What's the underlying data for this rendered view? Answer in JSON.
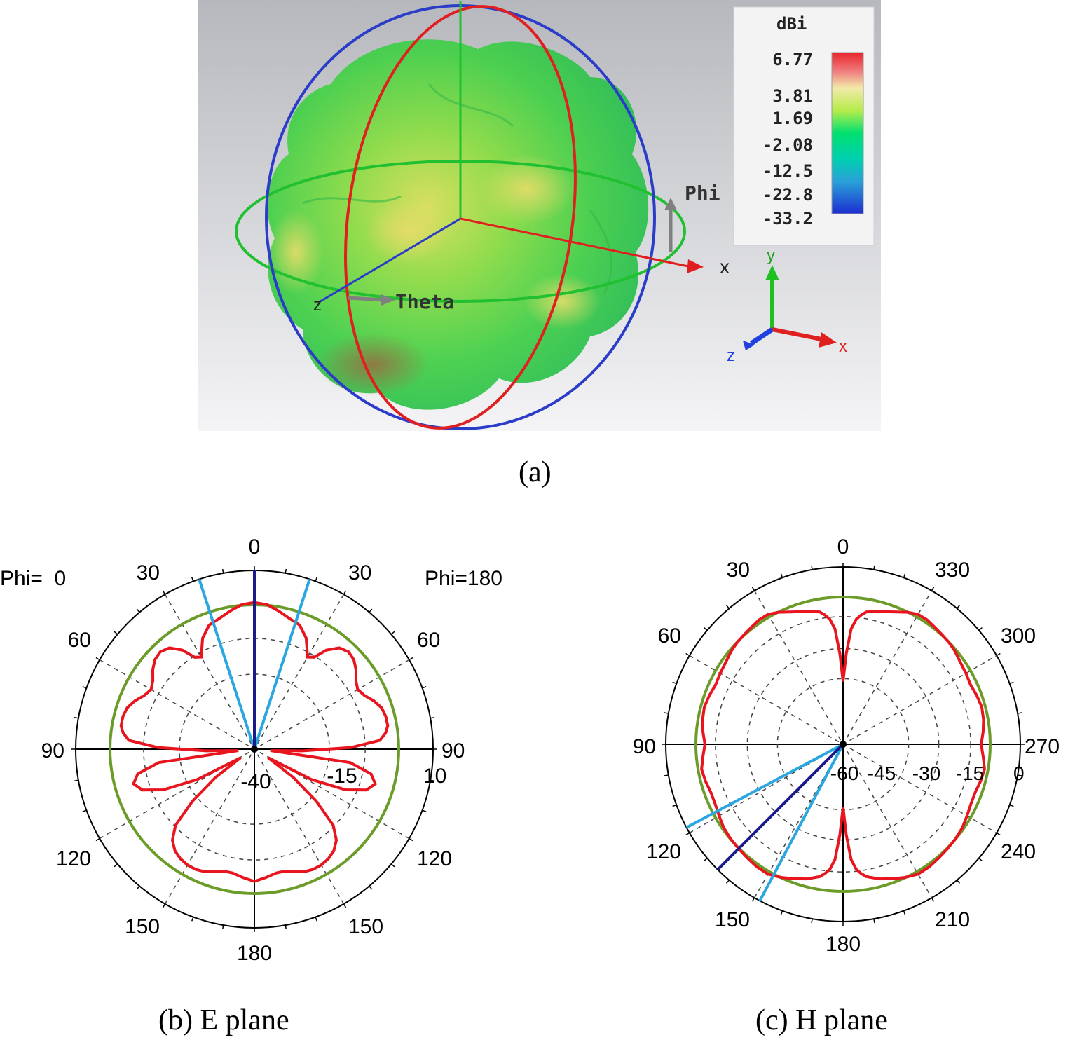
{
  "figure": {
    "caption_a": "(a)",
    "caption_b": "(b) E plane",
    "caption_c": "(c) H plane"
  },
  "chart_data": [
    {
      "type": "3d-surface",
      "id": "a",
      "legend": {
        "unit": "dBi",
        "values": [
          "6.77",
          "3.81",
          "1.69",
          "-2.08",
          "-12.5",
          "-22.8",
          "-33.2"
        ],
        "colors": [
          "#e8262c",
          "#f2e38a",
          "#b5ec4a",
          "#00e070",
          "#00c8a8",
          "#2aa0d8",
          "#1c2ed0"
        ]
      },
      "labels": {
        "phi": "Phi",
        "theta": "Theta",
        "x": "x",
        "y": "y",
        "z": "z"
      },
      "colors": {
        "background_top": "#b8babf",
        "background_bottom": "#f3f3f5",
        "surface_main": "#52d645",
        "surface_warm": "#d8d860",
        "ring_blue": "#2a3cc8",
        "ring_red": "#e02020",
        "ring_green": "#20c030",
        "axis_x": "#e02020",
        "axis_y": "#20c020",
        "axis_z": "#2040e0"
      }
    },
    {
      "type": "polar",
      "id": "b",
      "angle_labels": {
        "top": "0",
        "bottom": "180",
        "left": "90",
        "right": "90",
        "left_30": "30",
        "right_30": "30",
        "left_60": "60",
        "right_60": "60",
        "left_120": "120",
        "right_120": "120",
        "left_150": "150",
        "right_150": "150"
      },
      "side_left": "Phi=  0",
      "side_right": "Phi=180",
      "radial_labels": [
        "-40",
        "-15",
        "10"
      ],
      "rlim": [
        -40,
        10
      ],
      "series": [
        {
          "color": "#e8141e",
          "angles_deg": [
            0,
            5,
            10,
            15,
            20,
            25,
            30,
            33,
            36,
            40,
            44,
            48,
            52,
            56,
            60,
            64,
            68,
            72,
            76,
            80,
            83,
            86,
            89,
            92,
            95,
            98,
            102,
            106,
            110,
            114,
            118,
            122,
            126,
            130,
            134,
            138,
            142,
            146,
            150,
            154,
            158,
            162,
            166,
            170,
            175,
            180
          ],
          "values_db": [
            5.5,
            5,
            3.5,
            2,
            1,
            -2,
            -7,
            -6,
            -2,
            1,
            2,
            1.5,
            0,
            -2,
            -3,
            -2,
            0,
            1.5,
            2,
            2,
            1,
            -1,
            -10,
            -25,
            -35,
            -10,
            -3,
            -1,
            -3,
            -9,
            -20,
            -35,
            -25,
            -15,
            -6,
            -2,
            0,
            1,
            1.5,
            1.5,
            1,
            0,
            -1,
            -1,
            0,
            1
          ]
        },
        {
          "color": "#6b9c2a",
          "values_db": [
            3
          ],
          "note": ""
        }
      ],
      "beam_lines": {
        "main_deg": 0,
        "side_deg": [
          -18,
          18
        ],
        "main_color": "#1a1a8c",
        "side_color": "#2aa6e0"
      }
    },
    {
      "type": "polar",
      "id": "c",
      "angle_labels": {
        "top": "0",
        "bottom": "180",
        "left": "90",
        "right": "270",
        "l30": "30",
        "l60": "60",
        "l120": "120",
        "l150": "150",
        "r330": "330",
        "r300": "300",
        "r240": "240",
        "r210": "210"
      },
      "radial_labels": [
        "-60",
        "-45",
        "-30",
        "-15",
        "0"
      ],
      "rlim": [
        -60,
        0
      ],
      "series": [
        {
          "color": "#e8141e",
          "angles_deg": [
            0,
            2,
            4,
            6,
            8,
            10,
            14,
            18,
            22,
            26,
            30,
            34,
            38,
            42,
            46,
            50,
            55,
            60,
            65,
            70,
            75,
            80,
            85,
            90,
            95,
            100,
            105,
            110,
            115,
            120,
            125,
            130,
            135,
            140,
            145,
            150,
            155,
            160,
            165,
            170,
            172,
            174,
            176,
            178,
            180
          ],
          "values_db": [
            -35,
            -24,
            -14,
            -10,
            -8,
            -6.5,
            -5.5,
            -4.5,
            -3.2,
            -1.5,
            -0.3,
            -0.2,
            -0.8,
            -1.2,
            -1.5,
            -2,
            -3,
            -3.5,
            -4,
            -3.3,
            -2.8,
            -3.2,
            -4,
            -5,
            -4,
            -2.8,
            -3.3,
            -4,
            -3.8,
            -3,
            -2,
            -1.5,
            -1.2,
            -0.8,
            -0.3,
            -0.3,
            -1.5,
            -3,
            -4.5,
            -6.5,
            -8,
            -10,
            -14,
            -24,
            -35
          ]
        },
        {
          "color": "#6b9c2a",
          "values_db": [
            -2
          ],
          "note": ""
        }
      ],
      "beam_lines": {
        "main_deg": 135,
        "side_deg": [
          118,
          152
        ],
        "main_color": "#1a1a8c",
        "side_color": "#2aa6e0"
      }
    }
  ]
}
